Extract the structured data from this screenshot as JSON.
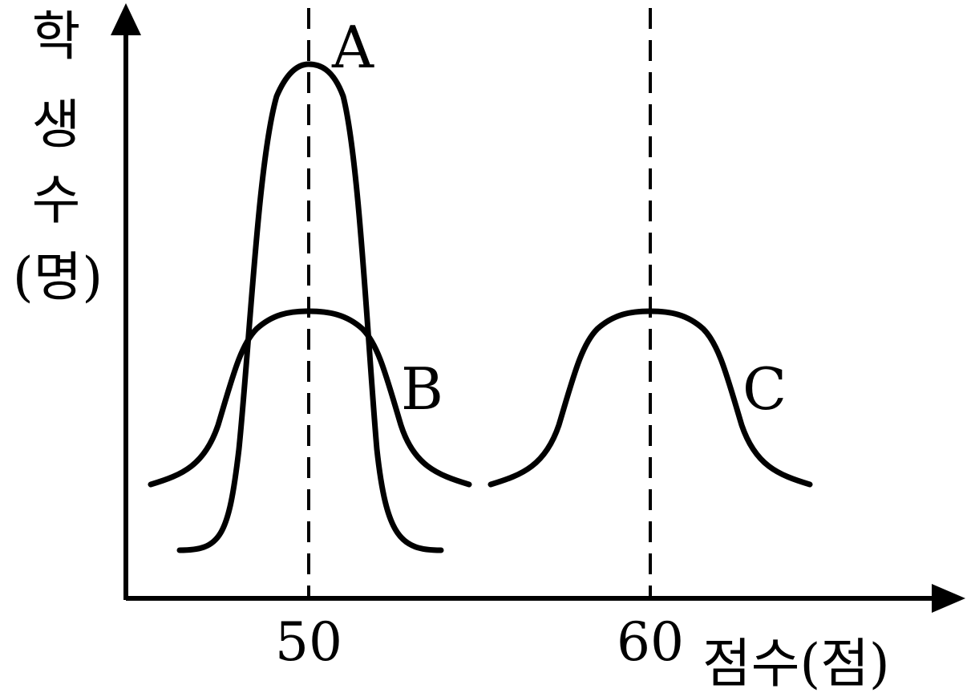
{
  "axes": {
    "y_label_chars": [
      "학",
      "생",
      "수",
      "(명)"
    ],
    "x_label": "점수(점)"
  },
  "ticks": [
    {
      "label": "50",
      "value": 50
    },
    {
      "label": "60",
      "value": 60
    }
  ],
  "curves": [
    {
      "label": "A",
      "mean": 50,
      "shape": "tall-narrow"
    },
    {
      "label": "B",
      "mean": 50,
      "shape": "short-wide"
    },
    {
      "label": "C",
      "mean": 60,
      "shape": "short-wide"
    }
  ],
  "colors": {
    "ink": "#000000",
    "background": "#ffffff"
  }
}
